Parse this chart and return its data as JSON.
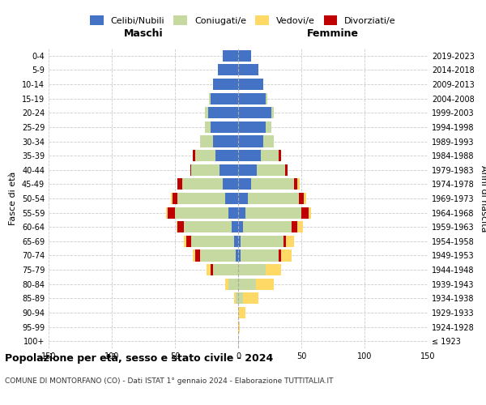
{
  "age_groups": [
    "100+",
    "95-99",
    "90-94",
    "85-89",
    "80-84",
    "75-79",
    "70-74",
    "65-69",
    "60-64",
    "55-59",
    "50-54",
    "45-49",
    "40-44",
    "35-39",
    "30-34",
    "25-29",
    "20-24",
    "15-19",
    "10-14",
    "5-9",
    "0-4"
  ],
  "birth_years": [
    "≤ 1923",
    "1924-1928",
    "1929-1933",
    "1934-1938",
    "1939-1943",
    "1944-1948",
    "1949-1953",
    "1954-1958",
    "1959-1963",
    "1964-1968",
    "1969-1973",
    "1974-1978",
    "1979-1983",
    "1984-1988",
    "1989-1993",
    "1994-1998",
    "1999-2003",
    "2004-2008",
    "2009-2013",
    "2014-2018",
    "2019-2023"
  ],
  "colors": {
    "celibi": "#4472C4",
    "coniugati": "#C5D9A0",
    "vedovi": "#FFD966",
    "divorziati": "#C00000"
  },
  "males": {
    "celibi": [
      0,
      0,
      0,
      0,
      0,
      0,
      2,
      3,
      5,
      8,
      10,
      12,
      15,
      18,
      20,
      22,
      24,
      22,
      20,
      16,
      12
    ],
    "coniugati": [
      0,
      0,
      0,
      2,
      8,
      20,
      28,
      34,
      38,
      42,
      38,
      32,
      22,
      16,
      10,
      4,
      2,
      1,
      0,
      0,
      0
    ],
    "vedovi": [
      0,
      0,
      0,
      1,
      2,
      3,
      2,
      2,
      1,
      1,
      1,
      0,
      0,
      0,
      0,
      0,
      0,
      0,
      0,
      0,
      0
    ],
    "divorziati": [
      0,
      0,
      0,
      0,
      0,
      2,
      4,
      4,
      5,
      6,
      4,
      4,
      1,
      2,
      0,
      0,
      0,
      0,
      0,
      0,
      0
    ]
  },
  "females": {
    "celibi": [
      0,
      0,
      0,
      0,
      0,
      0,
      2,
      2,
      4,
      6,
      8,
      10,
      15,
      18,
      20,
      22,
      26,
      22,
      20,
      16,
      10
    ],
    "coniugati": [
      0,
      0,
      0,
      4,
      14,
      22,
      30,
      34,
      38,
      44,
      40,
      34,
      22,
      14,
      8,
      4,
      2,
      1,
      0,
      0,
      0
    ],
    "vedovi": [
      0,
      1,
      6,
      12,
      14,
      12,
      8,
      6,
      4,
      2,
      2,
      2,
      0,
      0,
      0,
      0,
      0,
      0,
      0,
      0,
      0
    ],
    "divorziati": [
      0,
      0,
      0,
      0,
      0,
      0,
      2,
      2,
      5,
      6,
      4,
      3,
      2,
      2,
      0,
      0,
      0,
      0,
      0,
      0,
      0
    ]
  },
  "xlim": 150,
  "title": "Popolazione per età, sesso e stato civile - 2024",
  "subtitle": "COMUNE DI MONTORFANO (CO) - Dati ISTAT 1° gennaio 2024 - Elaborazione TUTTITALIA.IT",
  "ylabel_left": "Fasce di età",
  "ylabel_right": "Anni di nascita",
  "xlabel_left": "Maschi",
  "xlabel_right": "Femmine",
  "background_color": "#ffffff",
  "grid_color": "#cccccc"
}
